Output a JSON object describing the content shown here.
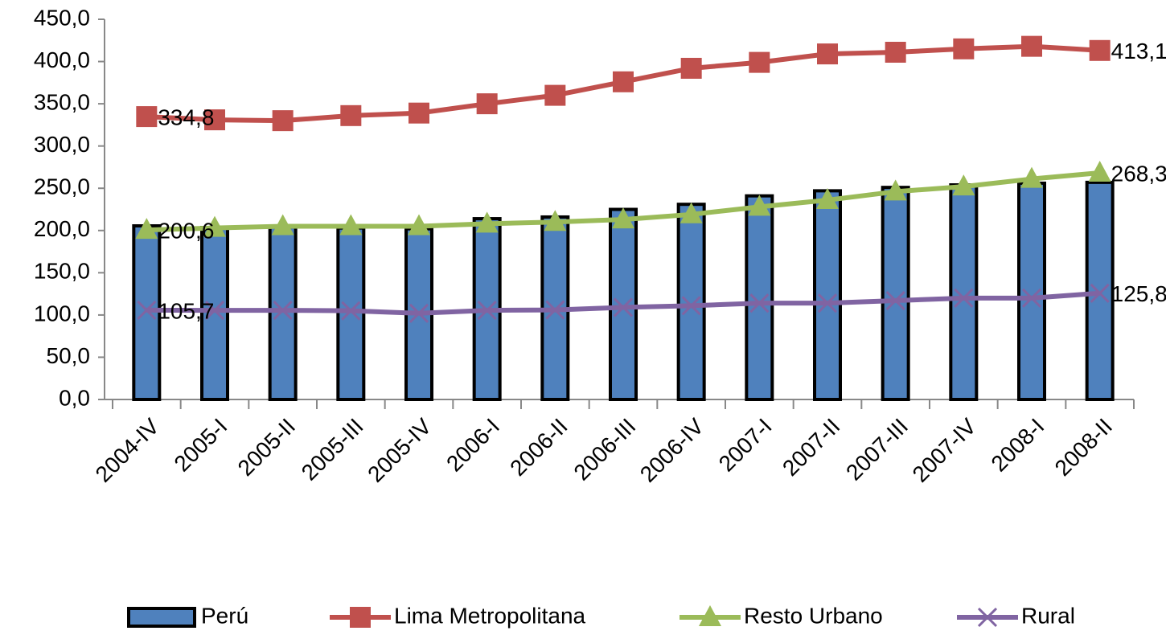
{
  "chart_data": {
    "type": "combo",
    "categories": [
      "2004-IV",
      "2005-I",
      "2005-II",
      "2005-III",
      "2005-IV",
      "2006-I",
      "2006-II",
      "2006-III",
      "2006-IV",
      "2007-I",
      "2007-II",
      "2007-III",
      "2007-IV",
      "2008-I",
      "2008-II"
    ],
    "series": [
      {
        "name": "Perú",
        "type": "bar",
        "color": "#4f81bd",
        "values": [
          205.5,
          203.6,
          204,
          203,
          202,
          214,
          216,
          225,
          231,
          241,
          247,
          251,
          254,
          256,
          257
        ]
      },
      {
        "name": "Lima Metropolitana",
        "type": "line",
        "marker": "square",
        "color": "#c0504d",
        "values": [
          334.8,
          331,
          330,
          336,
          339,
          350,
          360,
          376,
          392,
          399,
          409,
          411,
          415,
          418,
          413.1
        ],
        "value_labels": [
          "334,8",
          null,
          null,
          null,
          null,
          null,
          null,
          null,
          null,
          null,
          null,
          null,
          null,
          null,
          "413,1"
        ]
      },
      {
        "name": "Resto Urbano",
        "type": "line",
        "marker": "triangle",
        "color": "#9bbb59",
        "values": [
          200.6,
          203,
          205,
          205,
          205,
          208,
          210,
          213,
          219,
          228,
          236,
          246,
          252,
          261,
          268.3
        ],
        "value_labels": [
          "200,6",
          null,
          null,
          null,
          null,
          null,
          null,
          null,
          null,
          null,
          null,
          null,
          null,
          null,
          "268,3"
        ]
      },
      {
        "name": "Rural",
        "type": "line",
        "marker": "x",
        "color": "#8064a2",
        "values": [
          105.7,
          105.5,
          105.5,
          105,
          102,
          105.5,
          106,
          109,
          111,
          114,
          114,
          117,
          120,
          120,
          125.8
        ],
        "value_labels": [
          "105,7",
          null,
          null,
          null,
          null,
          null,
          null,
          null,
          null,
          null,
          null,
          null,
          null,
          null,
          "125,8"
        ]
      }
    ],
    "ylim": [
      0,
      450
    ],
    "yticks": [
      {
        "value": 0,
        "label": "0,0"
      },
      {
        "value": 50,
        "label": "50,0"
      },
      {
        "value": 100,
        "label": "100,0"
      },
      {
        "value": 150,
        "label": "150,0"
      },
      {
        "value": 200,
        "label": "200,0"
      },
      {
        "value": 250,
        "label": "250,0"
      },
      {
        "value": 300,
        "label": "300,0"
      },
      {
        "value": 350,
        "label": "350,0"
      },
      {
        "value": 400,
        "label": "400,0"
      },
      {
        "value": 450,
        "label": "450,0"
      }
    ],
    "grid": false,
    "legend": "bottom"
  }
}
